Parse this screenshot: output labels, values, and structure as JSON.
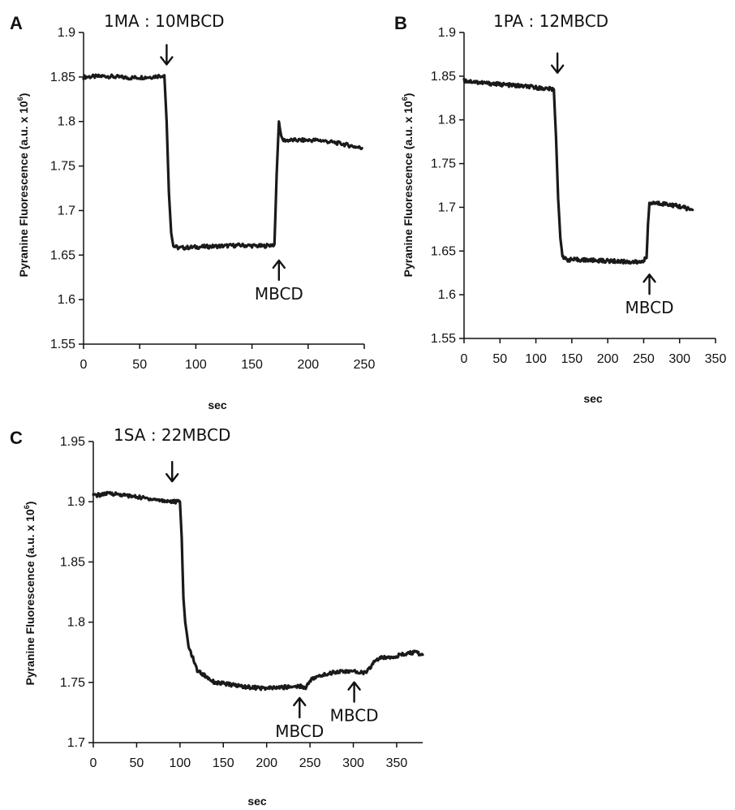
{
  "chart_data": [
    {
      "panel": "A",
      "type": "line",
      "title": "1MA : 10MBCD",
      "xlabel": "sec",
      "ylabel": "Pyranine Fluorescence (a.u. x 10^6)",
      "ylabel_main": "Pyranine Fluorescence (a.u. x 10",
      "ylabel_sup": "6",
      "ylabel_tail": ")",
      "xlim": [
        0,
        250
      ],
      "ylim": [
        1.55,
        1.9
      ],
      "xticks": [
        0,
        50,
        100,
        150,
        200,
        250
      ],
      "yticks": [
        1.55,
        1.6,
        1.65,
        1.7,
        1.75,
        1.8,
        1.85,
        1.9
      ],
      "series": [
        {
          "x": [
            0,
            20,
            40,
            60,
            72,
            74,
            76,
            78,
            80,
            85,
            100,
            120,
            140,
            160,
            170,
            172,
            174,
            176,
            178,
            190,
            210,
            230,
            248
          ],
          "y": [
            1.85,
            1.851,
            1.849,
            1.85,
            1.852,
            1.8,
            1.72,
            1.675,
            1.66,
            1.658,
            1.659,
            1.66,
            1.661,
            1.66,
            1.662,
            1.74,
            1.8,
            1.782,
            1.779,
            1.779,
            1.779,
            1.775,
            1.77
          ]
        }
      ],
      "annotations": [
        {
          "text": "",
          "x": 74,
          "y": 1.875,
          "dir": "down"
        },
        {
          "text": "MBCD",
          "x": 174,
          "y": 1.633,
          "dir": "up"
        }
      ]
    },
    {
      "panel": "B",
      "type": "line",
      "title": "1PA : 12MBCD",
      "xlabel": "sec",
      "ylabel": "Pyranine Fluorescence (a.u. x 10^6)",
      "ylabel_main": "Pyranine Fluorescence (a.u. x 10",
      "ylabel_sup": "6",
      "ylabel_tail": ")",
      "xlim": [
        0,
        350
      ],
      "ylim": [
        1.55,
        1.9
      ],
      "xticks": [
        0,
        50,
        100,
        150,
        200,
        250,
        300,
        350
      ],
      "yticks": [
        1.55,
        1.6,
        1.65,
        1.7,
        1.75,
        1.8,
        1.85,
        1.9
      ],
      "series": [
        {
          "x": [
            0,
            30,
            60,
            90,
            110,
            125,
            128,
            131,
            134,
            137,
            142,
            160,
            190,
            220,
            245,
            254,
            256,
            258,
            262,
            280,
            300,
            318
          ],
          "y": [
            1.845,
            1.842,
            1.84,
            1.838,
            1.836,
            1.835,
            1.78,
            1.71,
            1.665,
            1.645,
            1.64,
            1.64,
            1.639,
            1.638,
            1.637,
            1.642,
            1.68,
            1.703,
            1.705,
            1.704,
            1.701,
            1.697
          ]
        }
      ],
      "annotations": [
        {
          "text": "",
          "x": 130,
          "y": 1.865,
          "dir": "down"
        },
        {
          "text": "MBCD",
          "x": 258,
          "y": 1.612,
          "dir": "up"
        }
      ]
    },
    {
      "panel": "C",
      "type": "line",
      "title": "1SA : 22MBCD",
      "xlabel": "sec",
      "ylabel": "Pyranine Fluorescence (a.u. x 10^6)",
      "ylabel_main": "Pyranine Fluorescence (a.u. x 10",
      "ylabel_sup": "6",
      "ylabel_tail": ")",
      "xlim": [
        0,
        380
      ],
      "ylim": [
        1.7,
        1.95
      ],
      "xticks": [
        0,
        50,
        100,
        150,
        200,
        250,
        300,
        350
      ],
      "yticks": [
        1.7,
        1.75,
        1.8,
        1.85,
        1.9,
        1.95
      ],
      "series": [
        {
          "x": [
            0,
            20,
            40,
            60,
            80,
            95,
            100,
            102,
            104,
            106,
            110,
            120,
            140,
            160,
            180,
            200,
            220,
            240,
            245,
            250,
            260,
            280,
            300,
            315,
            322,
            325,
            330,
            350,
            370,
            380
          ],
          "y": [
            1.905,
            1.907,
            1.905,
            1.903,
            1.901,
            1.9,
            1.9,
            1.87,
            1.82,
            1.8,
            1.78,
            1.76,
            1.75,
            1.748,
            1.746,
            1.745,
            1.746,
            1.747,
            1.745,
            1.752,
            1.755,
            1.759,
            1.759,
            1.758,
            1.765,
            1.768,
            1.77,
            1.772,
            1.775,
            1.773
          ]
        }
      ],
      "annotations": [
        {
          "text": "",
          "x": 91,
          "y": 1.925,
          "dir": "down"
        },
        {
          "text": "MBCD",
          "x": 238,
          "y": 1.729,
          "dir": "up"
        },
        {
          "text": "MBCD",
          "x": 301,
          "y": 1.742,
          "dir": "up"
        }
      ]
    }
  ]
}
